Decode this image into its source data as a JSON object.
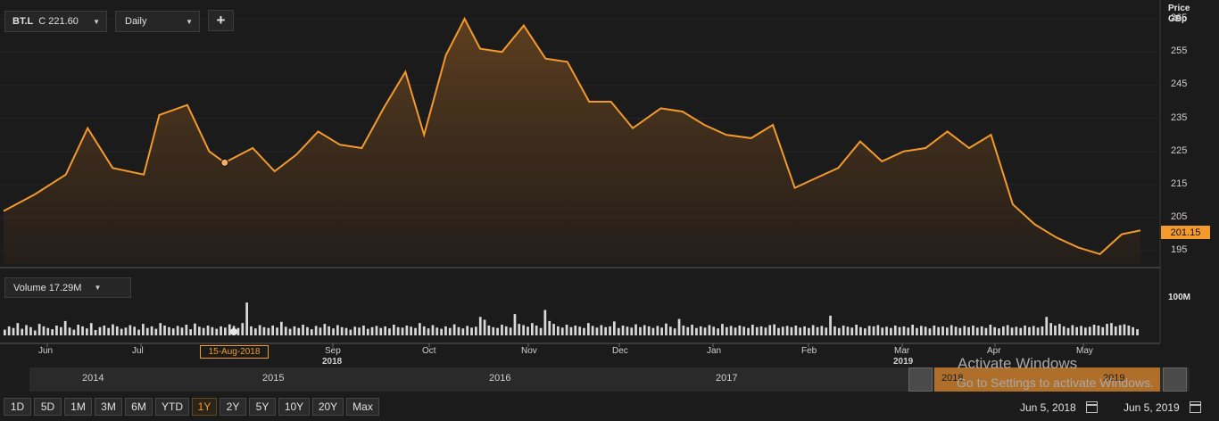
{
  "toolbar": {
    "ticker_symbol": "BT.L",
    "ticker_price": "C 221.60",
    "interval": "Daily",
    "add_label": "+"
  },
  "price_axis": {
    "title_line1": "Price",
    "title_line2": "GBp"
  },
  "last_price_badge": "201.15",
  "volume": {
    "selector_label": "Volume",
    "selector_value": "17.29M",
    "axis_label": "100M"
  },
  "cursor_label": "15-Aug-2018",
  "x_axis": {
    "months": [
      "Jun",
      "Jul",
      "Sep",
      "Oct",
      "Nov",
      "Dec",
      "Jan",
      "Feb",
      "Mar",
      "Apr",
      "May"
    ],
    "years": [
      "2018",
      "2019"
    ]
  },
  "navigator": {
    "years": [
      "2014",
      "2015",
      "2016",
      "2017",
      "2018",
      "2019"
    ]
  },
  "watermark": {
    "line1": "Activate Windows",
    "line2": "Go to Settings to activate Windows."
  },
  "ranges": [
    "1D",
    "5D",
    "1M",
    "3M",
    "6M",
    "YTD",
    "1Y",
    "2Y",
    "5Y",
    "10Y",
    "20Y",
    "Max"
  ],
  "active_range": "1Y",
  "date_range": {
    "from": "Jun 5, 2018",
    "to": "Jun 5, 2019"
  },
  "colors": {
    "line": "#f39a2d",
    "volume_bar": "#d9d9d9",
    "background": "#1b1b1b"
  },
  "chart_data": [
    {
      "type": "area",
      "series": [
        {
          "name": "BT.L",
          "x": [
            "2018-06-05",
            "2018-06-15",
            "2018-06-25",
            "2018-07-02",
            "2018-07-10",
            "2018-07-20",
            "2018-07-25",
            "2018-08-03",
            "2018-08-10",
            "2018-08-15",
            "2018-08-24",
            "2018-08-31",
            "2018-09-07",
            "2018-09-14",
            "2018-09-21",
            "2018-09-28",
            "2018-10-05",
            "2018-10-12",
            "2018-10-18",
            "2018-10-25",
            "2018-10-31",
            "2018-11-05",
            "2018-11-12",
            "2018-11-19",
            "2018-11-26",
            "2018-12-03",
            "2018-12-10",
            "2018-12-17",
            "2018-12-24",
            "2019-01-02",
            "2019-01-09",
            "2019-01-16",
            "2019-01-23",
            "2019-01-31",
            "2019-02-07",
            "2019-02-14",
            "2019-02-21",
            "2019-02-28",
            "2019-03-07",
            "2019-03-14",
            "2019-03-21",
            "2019-03-28",
            "2019-04-04",
            "2019-04-11",
            "2019-04-18",
            "2019-04-25",
            "2019-05-02",
            "2019-05-09",
            "2019-05-16",
            "2019-05-23",
            "2019-05-30",
            "2019-06-05"
          ],
          "y": [
            207,
            212,
            218,
            232,
            220,
            218,
            236,
            239,
            225,
            221.6,
            226,
            219,
            224,
            231,
            227,
            226,
            238,
            249,
            230,
            254,
            265,
            256,
            255,
            263,
            253,
            252,
            240,
            240,
            232,
            238,
            237,
            233,
            230,
            229,
            233,
            214,
            217,
            220,
            228,
            222,
            225,
            226,
            231,
            226,
            230,
            209,
            203,
            199,
            196,
            194,
            200,
            201.15
          ]
        }
      ],
      "xlabel": "",
      "ylabel": "Price GBp",
      "yticks": [
        195,
        205,
        215,
        225,
        235,
        245,
        255,
        265
      ],
      "ylim": [
        191,
        268
      ]
    },
    {
      "type": "bar",
      "series": [
        {
          "name": "Volume",
          "values": [
            14,
            22,
            18,
            30,
            16,
            25,
            20,
            12,
            28,
            22,
            18,
            15,
            24,
            20,
            35,
            19,
            14,
            26,
            22,
            17,
            30,
            13,
            20,
            24,
            18,
            27,
            22,
            16,
            19,
            25,
            21,
            14,
            28,
            18,
            22,
            16,
            30,
            24,
            20,
            17,
            23,
            19,
            26,
            15,
            29,
            21,
            18,
            24,
            20,
            16,
            22,
            19,
            27,
            23,
            18,
            30,
            80,
            22,
            17,
            25,
            20,
            18,
            24,
            19,
            33,
            21,
            16,
            22,
            18,
            26,
            20,
            15,
            23,
            19,
            28,
            22,
            17,
            25,
            20,
            18,
            14,
            21,
            19,
            24,
            16,
            20,
            23,
            18,
            22,
            17,
            26,
            20,
            19,
            24,
            21,
            18,
            30,
            22,
            17,
            25,
            19,
            16,
            22,
            18,
            27,
            20,
            17,
            23,
            19,
            21,
            45,
            38,
            24,
            20,
            18,
            26,
            22,
            19,
            52,
            28,
            25,
            21,
            30,
            24,
            18,
            62,
            35,
            28,
            22,
            19,
            26,
            20,
            24,
            21,
            18,
            30,
            23,
            19,
            25,
            20,
            22,
            34,
            18,
            24,
            21,
            19,
            27,
            20,
            25,
            22,
            18,
            23,
            19,
            29,
            21,
            17,
            40,
            24,
            20,
            26,
            18,
            22,
            19,
            25,
            21,
            17,
            28,
            20,
            23,
            19,
            24,
            21,
            18,
            26,
            20,
            22,
            19,
            25,
            27,
            18,
            21,
            23,
            20,
            24,
            19,
            22,
            18,
            25,
            20,
            23,
            19,
            48,
            22,
            18,
            24,
            21,
            19,
            26,
            20,
            17,
            23,
            22,
            25,
            19,
            21,
            18,
            24,
            20,
            22,
            19,
            26,
            18,
            23,
            21,
            17,
            24,
            20,
            22,
            19,
            25,
            21,
            18,
            23,
            20,
            24,
            19,
            22,
            18,
            26,
            20,
            17,
            22,
            25,
            19,
            21,
            18,
            24,
            20,
            23,
            19,
            22,
            45,
            30,
            24,
            28,
            22,
            18,
            25,
            20,
            23,
            19,
            21,
            26,
            24,
            20,
            28,
            30,
            22,
            25,
            27,
            24,
            20,
            15
          ]
        }
      ],
      "ylim": [
        0,
        100
      ]
    }
  ]
}
